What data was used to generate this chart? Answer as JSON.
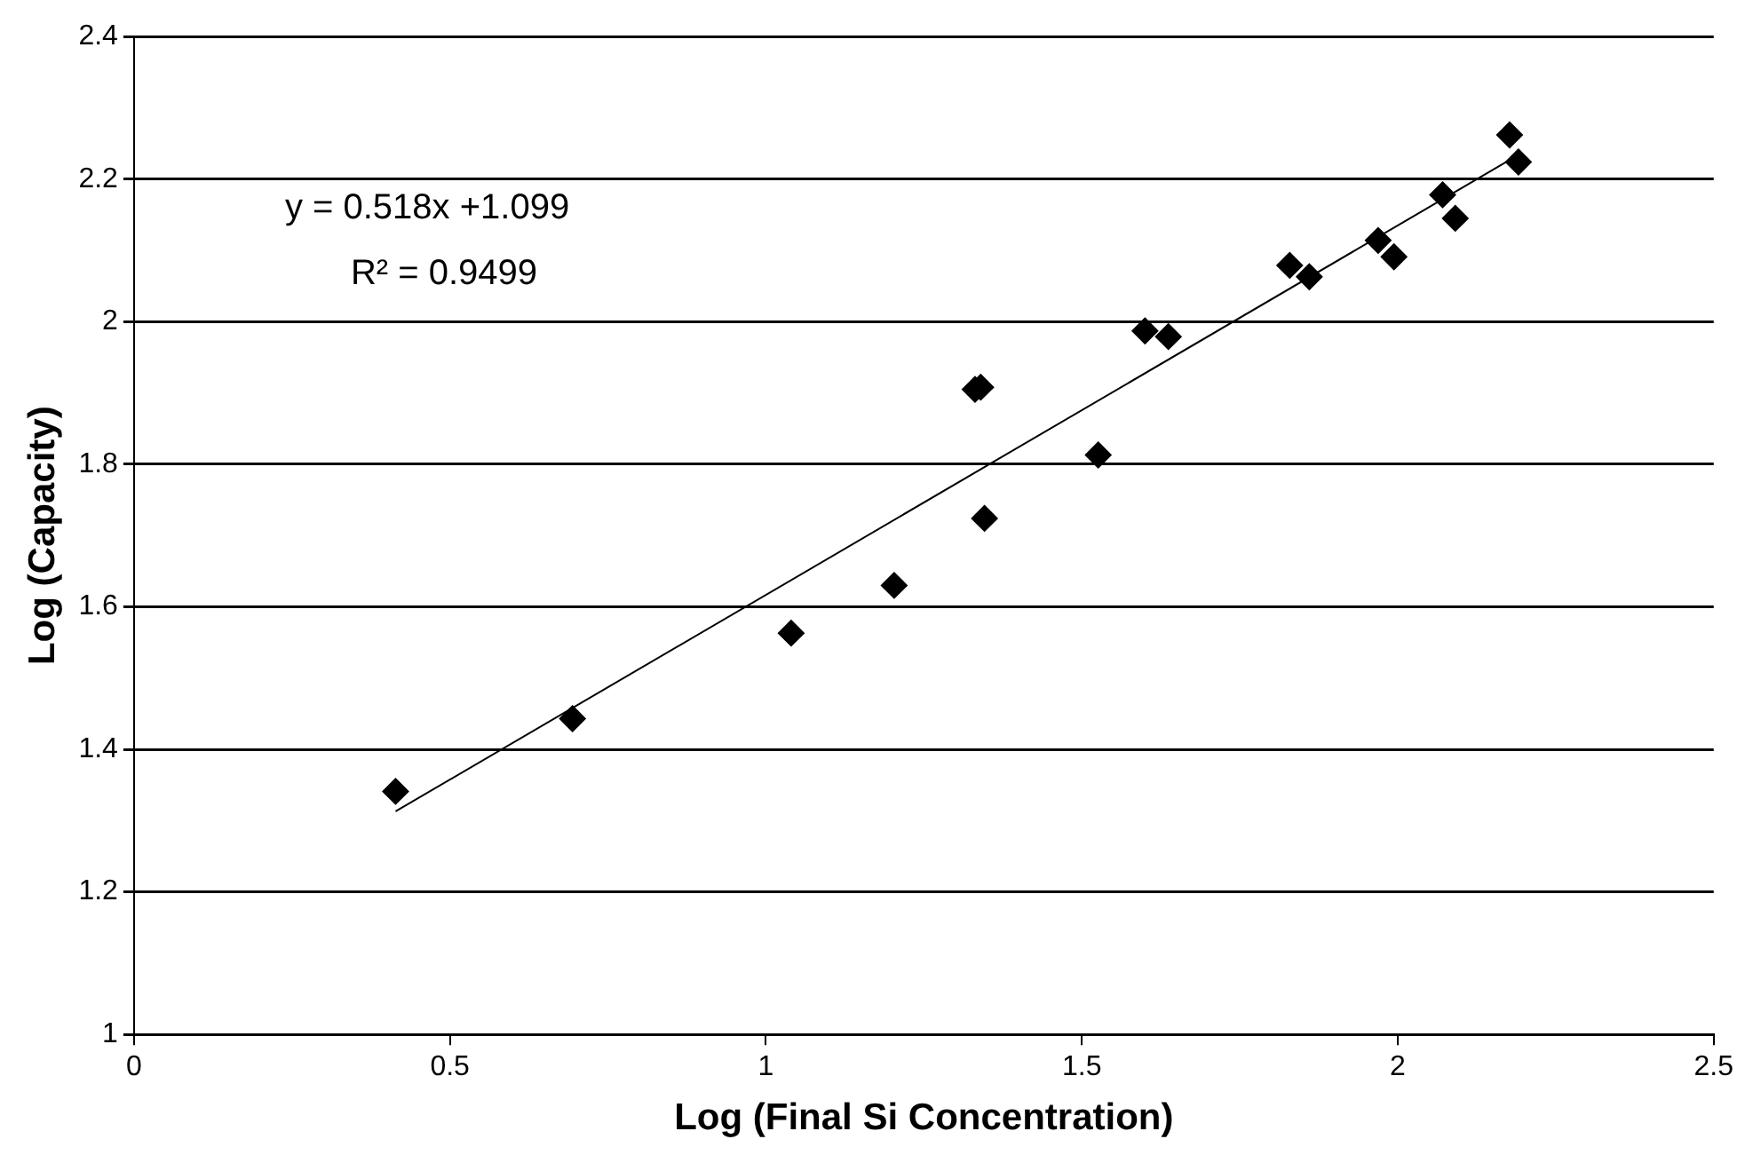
{
  "chart_data": {
    "type": "scatter",
    "xlabel": "Log (Final Si Concentration)",
    "ylabel": "Log (Capacity)",
    "annotations": [
      "y = 0.518x +1.099",
      "R² = 0.9499"
    ],
    "series": [
      {
        "color": "#000000",
        "marker": "diamond",
        "x": [
          0.414,
          0.694,
          1.04,
          1.203,
          1.331,
          1.34,
          1.346,
          1.526,
          1.6,
          1.637,
          1.829,
          1.86,
          1.969,
          1.994,
          2.071,
          2.091,
          2.177,
          2.191
        ],
        "values": [
          1.341,
          1.443,
          1.563,
          1.63,
          1.905,
          1.908,
          1.724,
          1.813,
          1.987,
          1.979,
          2.079,
          2.063,
          2.114,
          2.091,
          2.178,
          2.145,
          2.262,
          2.224
        ]
      },
      {
        "type": "line",
        "color": "#000000",
        "marker": "none",
        "x": [
          0.414,
          2.191
        ],
        "values": [
          1.313,
          2.234
        ]
      }
    ],
    "xlim": [
      0,
      2.5
    ],
    "xticks": [
      0,
      0.5,
      1,
      1.5,
      2,
      2.5
    ],
    "ylim": [
      1,
      2.4
    ],
    "yticks": [
      1,
      1.2,
      1.4,
      1.6,
      1.8,
      2,
      2.2,
      2.4
    ],
    "grid": "y",
    "legend": false
  }
}
